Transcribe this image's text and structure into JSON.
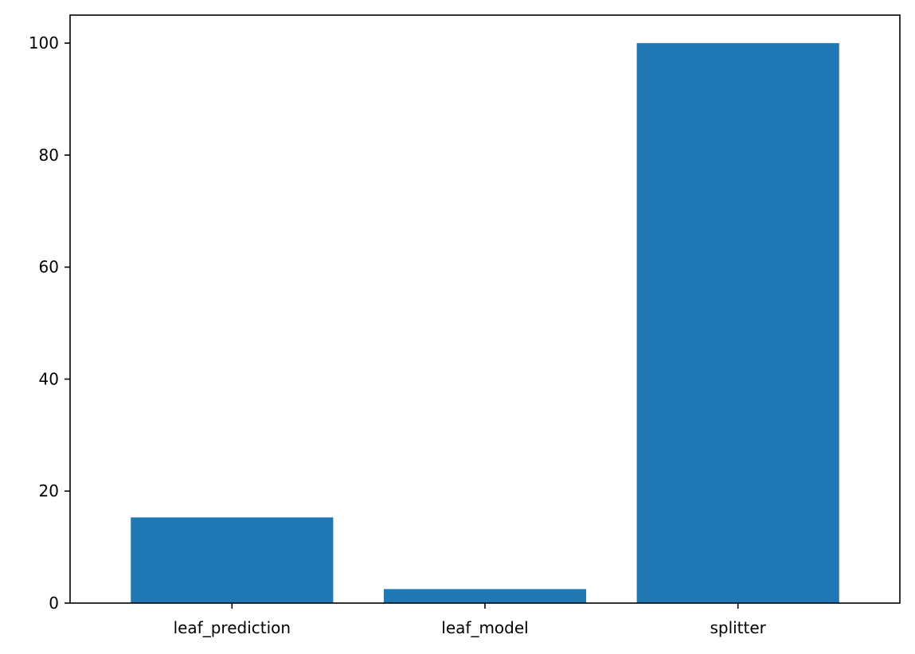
{
  "chart_data": {
    "type": "bar",
    "title": "",
    "xlabel": "",
    "ylabel": "",
    "categories": [
      "leaf_prediction",
      "leaf_model",
      "splitter"
    ],
    "values": [
      15.3,
      2.5,
      100
    ],
    "ylim": [
      0,
      105
    ],
    "yticks": [
      0,
      20,
      40,
      60,
      80,
      100
    ],
    "grid": false,
    "legend": "none",
    "bar_color": "#1f77b4",
    "axis_color": "#000000"
  }
}
